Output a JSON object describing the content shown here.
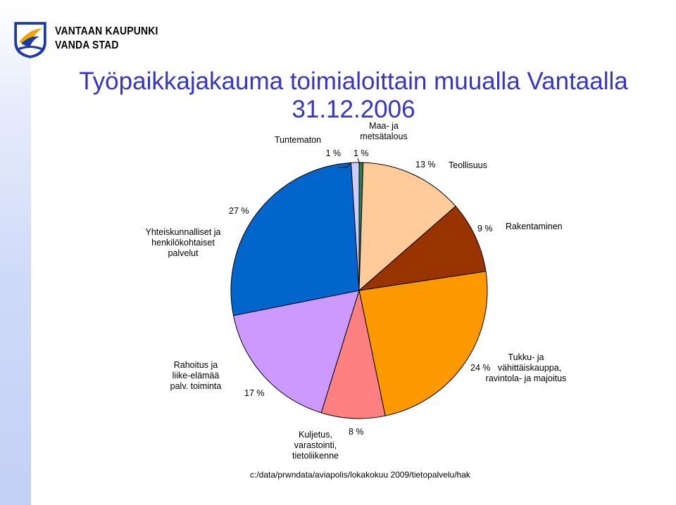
{
  "brand": {
    "line1": "VANTAAN KAUPUNKI",
    "line2": "VANDA STAD"
  },
  "title_lines": [
    "Työpaikkajakauma toimialoittain muualla Vantaalla",
    "31.12.2006"
  ],
  "footer": "c:/data/prwndata/aviapolis/lokakokuu 2009/tietopalvelu/hak",
  "colors": {
    "title": "#3535c8",
    "sidebar": "#c3d0f6"
  },
  "chart_data": {
    "type": "pie",
    "title": "Työpaikkajakauma toimialoittain muualla Vantaalla 31.12.2006",
    "unit": "%",
    "slices": [
      {
        "label": "Maa- ja metsätalous",
        "value": 0.5,
        "value_label": "1 %",
        "color": "#2e7d4b"
      },
      {
        "label": "Teollisuus",
        "value": 13,
        "value_label": "13 %",
        "color": "#ffcc99"
      },
      {
        "label": "Rakentaminen",
        "value": 9,
        "value_label": "9 %",
        "color": "#993300"
      },
      {
        "label": "Tukku- ja vähittäiskauppa, ravintola- ja majoitus",
        "value": 24,
        "value_label": "24 %",
        "color": "#ff9900"
      },
      {
        "label": "Kuljetus, varastointi, tietoliikenne",
        "value": 8,
        "value_label": "8 %",
        "color": "#ff8080"
      },
      {
        "label": "Rahoitus ja liike-elämää palv. toiminta",
        "value": 17,
        "value_label": "17 %",
        "color": "#cc99ff"
      },
      {
        "label": "Yhteiskunnalliset ja henkilökohtaiset palvelut",
        "value": 27,
        "value_label": "27 %",
        "color": "#0066cc"
      },
      {
        "label": "Tuntematon",
        "value": 1,
        "value_label": "1 %",
        "color": "#ccccff"
      }
    ]
  }
}
